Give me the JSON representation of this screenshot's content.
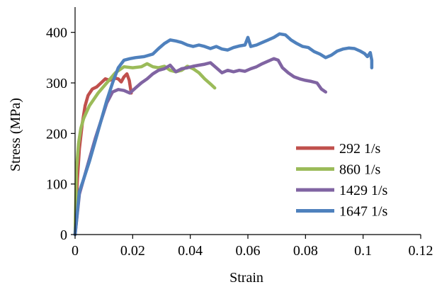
{
  "chart_data": {
    "type": "line",
    "title": "",
    "xlabel": "Strain",
    "ylabel": "Stress (MPa)",
    "xlim": [
      0,
      0.12
    ],
    "ylim": [
      0,
      450
    ],
    "x_ticks": [
      "0",
      "0.02",
      "0.04",
      "0.06",
      "0.08",
      "0.1",
      "0.12"
    ],
    "y_ticks": [
      "0",
      "100",
      "200",
      "300",
      "400"
    ],
    "grid": false,
    "legend_position": "bottom-right",
    "series": [
      {
        "name": "292 1/s",
        "color": "#C0504D",
        "points": [
          [
            0,
            0
          ],
          [
            0.0008,
            110
          ],
          [
            0.0015,
            170
          ],
          [
            0.0025,
            220
          ],
          [
            0.0035,
            255
          ],
          [
            0.0045,
            275
          ],
          [
            0.006,
            288
          ],
          [
            0.0075,
            292
          ],
          [
            0.009,
            300
          ],
          [
            0.0105,
            308
          ],
          [
            0.012,
            305
          ],
          [
            0.0135,
            310
          ],
          [
            0.015,
            308
          ],
          [
            0.016,
            302
          ],
          [
            0.017,
            312
          ],
          [
            0.018,
            318
          ],
          [
            0.0188,
            305
          ],
          [
            0.0195,
            280
          ]
        ]
      },
      {
        "name": "860 1/s",
        "color": "#9BBB59",
        "points": [
          [
            0,
            0
          ],
          [
            0.0005,
            130
          ],
          [
            0.0012,
            180
          ],
          [
            0.002,
            210
          ],
          [
            0.003,
            230
          ],
          [
            0.005,
            255
          ],
          [
            0.008,
            280
          ],
          [
            0.011,
            300
          ],
          [
            0.014,
            320
          ],
          [
            0.017,
            332
          ],
          [
            0.02,
            330
          ],
          [
            0.023,
            332
          ],
          [
            0.025,
            338
          ],
          [
            0.027,
            332
          ],
          [
            0.029,
            330
          ],
          [
            0.031,
            333
          ],
          [
            0.033,
            325
          ],
          [
            0.035,
            322
          ],
          [
            0.037,
            325
          ],
          [
            0.039,
            333
          ],
          [
            0.041,
            328
          ],
          [
            0.043,
            320
          ],
          [
            0.045,
            308
          ],
          [
            0.047,
            298
          ],
          [
            0.0485,
            290
          ]
        ]
      },
      {
        "name": "1429 1/s",
        "color": "#8064A2",
        "points": [
          [
            0,
            0
          ],
          [
            0.0015,
            80
          ],
          [
            0.003,
            110
          ],
          [
            0.005,
            150
          ],
          [
            0.007,
            190
          ],
          [
            0.009,
            225
          ],
          [
            0.011,
            260
          ],
          [
            0.013,
            282
          ],
          [
            0.015,
            287
          ],
          [
            0.017,
            285
          ],
          [
            0.019,
            280
          ],
          [
            0.021,
            290
          ],
          [
            0.023,
            300
          ],
          [
            0.025,
            308
          ],
          [
            0.027,
            318
          ],
          [
            0.029,
            325
          ],
          [
            0.031,
            328
          ],
          [
            0.033,
            335
          ],
          [
            0.035,
            322
          ],
          [
            0.037,
            328
          ],
          [
            0.039,
            330
          ],
          [
            0.041,
            333
          ],
          [
            0.043,
            335
          ],
          [
            0.045,
            337
          ],
          [
            0.047,
            340
          ],
          [
            0.049,
            330
          ],
          [
            0.051,
            320
          ],
          [
            0.053,
            325
          ],
          [
            0.055,
            322
          ],
          [
            0.057,
            325
          ],
          [
            0.059,
            323
          ],
          [
            0.061,
            328
          ],
          [
            0.063,
            332
          ],
          [
            0.065,
            338
          ],
          [
            0.067,
            343
          ],
          [
            0.069,
            348
          ],
          [
            0.0705,
            345
          ],
          [
            0.072,
            330
          ],
          [
            0.074,
            320
          ],
          [
            0.076,
            312
          ],
          [
            0.078,
            308
          ],
          [
            0.08,
            305
          ],
          [
            0.082,
            303
          ],
          [
            0.084,
            300
          ],
          [
            0.0855,
            288
          ],
          [
            0.087,
            282
          ]
        ]
      },
      {
        "name": "1647 1/s",
        "color": "#4F81BD",
        "points": [
          [
            0,
            0
          ],
          [
            0.0015,
            85
          ],
          [
            0.003,
            110
          ],
          [
            0.005,
            145
          ],
          [
            0.007,
            185
          ],
          [
            0.009,
            225
          ],
          [
            0.011,
            265
          ],
          [
            0.013,
            300
          ],
          [
            0.015,
            330
          ],
          [
            0.017,
            345
          ],
          [
            0.019,
            348
          ],
          [
            0.021,
            350
          ],
          [
            0.024,
            352
          ],
          [
            0.027,
            357
          ],
          [
            0.029,
            368
          ],
          [
            0.031,
            378
          ],
          [
            0.033,
            385
          ],
          [
            0.035,
            383
          ],
          [
            0.037,
            380
          ],
          [
            0.039,
            375
          ],
          [
            0.041,
            372
          ],
          [
            0.043,
            375
          ],
          [
            0.045,
            372
          ],
          [
            0.047,
            368
          ],
          [
            0.049,
            372
          ],
          [
            0.051,
            367
          ],
          [
            0.053,
            365
          ],
          [
            0.055,
            370
          ],
          [
            0.057,
            373
          ],
          [
            0.059,
            375
          ],
          [
            0.06,
            390
          ],
          [
            0.061,
            372
          ],
          [
            0.063,
            375
          ],
          [
            0.065,
            380
          ],
          [
            0.067,
            385
          ],
          [
            0.069,
            390
          ],
          [
            0.071,
            397
          ],
          [
            0.073,
            395
          ],
          [
            0.075,
            385
          ],
          [
            0.077,
            378
          ],
          [
            0.079,
            372
          ],
          [
            0.081,
            370
          ],
          [
            0.083,
            362
          ],
          [
            0.085,
            357
          ],
          [
            0.087,
            350
          ],
          [
            0.089,
            355
          ],
          [
            0.091,
            363
          ],
          [
            0.093,
            367
          ],
          [
            0.095,
            369
          ],
          [
            0.097,
            368
          ],
          [
            0.099,
            363
          ],
          [
            0.1005,
            358
          ],
          [
            0.1015,
            352
          ],
          [
            0.1025,
            360
          ],
          [
            0.103,
            345
          ],
          [
            0.103,
            330
          ]
        ]
      }
    ]
  }
}
